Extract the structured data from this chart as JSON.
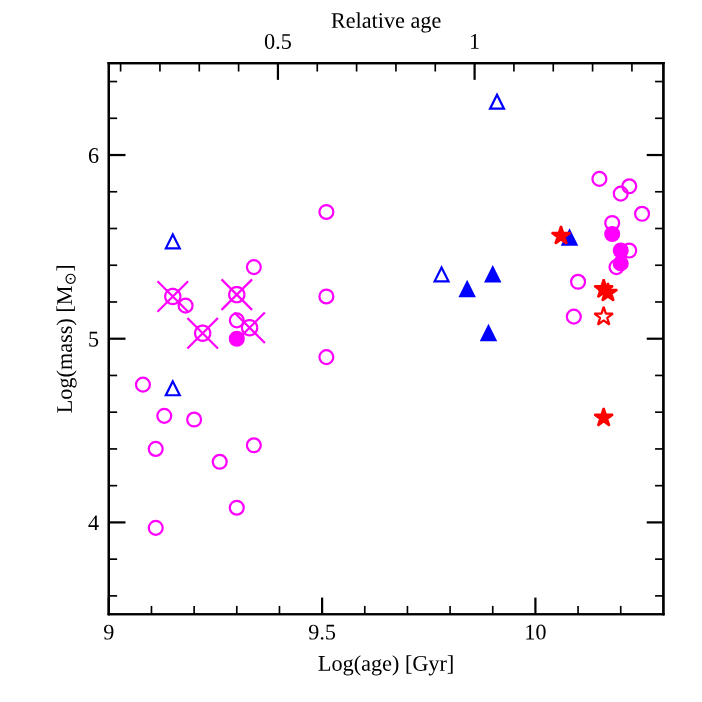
{
  "chart_data": {
    "type": "scatter",
    "xlabel": "Log(age) [Gyr]",
    "ylabel": "Log(mass) [M$_{⊙}$]",
    "x2label": "Relative age",
    "xlim": [
      9,
      10.3
    ],
    "ylim": [
      3.5,
      6.5
    ],
    "x2lim": [
      0.07,
      1.48
    ],
    "xticks": [
      9,
      {
        "value": 9.1,
        "label": null
      },
      {
        "value": 9.2,
        "label": null
      },
      {
        "value": 9.3,
        "label": null
      },
      {
        "value": 9.4,
        "label": null
      },
      9.5,
      {
        "value": 9.6,
        "label": null
      },
      {
        "value": 9.7,
        "label": null
      },
      {
        "value": 9.8,
        "label": null
      },
      {
        "value": 9.9,
        "label": null
      },
      10,
      {
        "value": 10.1,
        "label": null
      },
      {
        "value": 10.2,
        "label": null
      }
    ],
    "yticks": [
      {
        "value": 3.6,
        "label": null
      },
      {
        "value": 3.8,
        "label": null
      },
      4,
      {
        "value": 4.2,
        "label": null
      },
      {
        "value": 4.4,
        "label": null
      },
      {
        "value": 4.6,
        "label": null
      },
      {
        "value": 4.8,
        "label": null
      },
      5,
      {
        "value": 5.2,
        "label": null
      },
      {
        "value": 5.4,
        "label": null
      },
      {
        "value": 5.6,
        "label": null
      },
      {
        "value": 5.8,
        "label": null
      },
      6,
      {
        "value": 6.2,
        "label": null
      },
      {
        "value": 6.4,
        "label": null
      }
    ],
    "x2ticks": [
      {
        "value": 0.1,
        "label": null
      },
      {
        "value": 0.2,
        "label": null
      },
      {
        "value": 0.3,
        "label": null
      },
      {
        "value": 0.4,
        "label": null
      },
      0.5,
      {
        "value": 0.6,
        "label": null
      },
      {
        "value": 0.7,
        "label": null
      },
      {
        "value": 0.8,
        "label": null
      },
      {
        "value": 0.9,
        "label": null
      },
      1,
      {
        "value": 1.1,
        "label": null
      },
      {
        "value": 1.2,
        "label": null
      },
      {
        "value": 1.3,
        "label": null
      },
      {
        "value": 1.4,
        "label": null
      }
    ],
    "grid": false,
    "legend": false,
    "series": [
      {
        "color": "#ff00ff",
        "marker": "circle",
        "x": [
          9.18,
          9.34,
          9.51,
          9.51,
          9.3,
          9.51,
          9.08,
          9.13,
          9.2,
          9.11,
          9.34,
          9.26,
          9.3,
          9.11,
          10.15,
          10.22,
          10.2,
          10.25,
          10.18,
          10.22,
          10.19,
          10.1,
          10.09
        ],
        "values": [
          5.18,
          5.39,
          5.69,
          5.23,
          5.1,
          4.9,
          4.75,
          4.58,
          4.56,
          4.4,
          4.42,
          4.33,
          4.08,
          3.97,
          5.87,
          5.83,
          5.79,
          5.68,
          5.63,
          5.48,
          5.39,
          5.31,
          5.12
        ]
      },
      {
        "color": "#ff00ff",
        "marker": "circle",
        "x": [
          9.3,
          10.18,
          10.2,
          10.2
        ],
        "values": [
          5.0,
          5.57,
          5.48,
          5.41
        ]
      },
      {
        "color": "#ff00ff",
        "marker": "cross",
        "x": [
          9.15,
          9.3,
          9.22,
          9.33
        ],
        "values": [
          5.23,
          5.24,
          5.03,
          5.06
        ]
      },
      {
        "color": "#0000ff",
        "marker": "triangle",
        "x": [
          9.15,
          9.15,
          9.91,
          9.78
        ],
        "values": [
          5.53,
          4.73,
          6.29,
          5.35
        ]
      },
      {
        "color": "#0000ff",
        "marker": "triangle",
        "x": [
          10.08,
          9.9,
          9.84,
          9.89
        ],
        "values": [
          5.55,
          5.35,
          5.27,
          5.03
        ]
      },
      {
        "color": "#ff0000",
        "marker": "star",
        "x": [
          10.06,
          10.16,
          10.17,
          10.16
        ],
        "values": [
          5.56,
          5.27,
          5.25,
          4.57
        ]
      },
      {
        "color": "#ff0000",
        "marker": "star",
        "x": [
          10.16
        ],
        "values": [
          5.12
        ]
      }
    ]
  }
}
